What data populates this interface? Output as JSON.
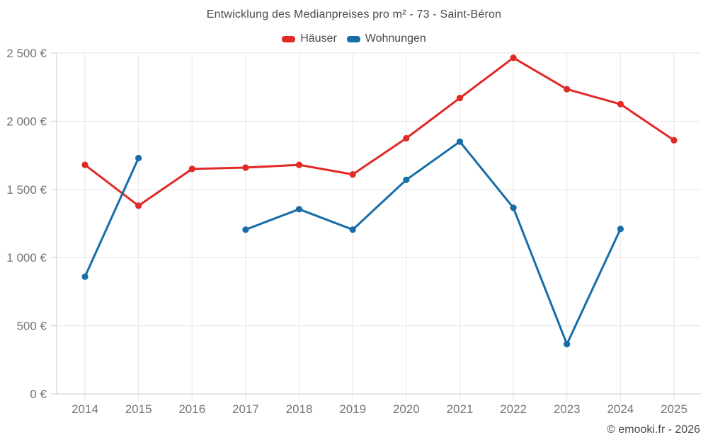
{
  "title": "Entwicklung des Medianpreises pro m² - 73 - Saint-Béron",
  "footer": "© emooki.fr - 2026",
  "colors": {
    "haeuser": "#e12926",
    "wohnungen": "#176da7",
    "grid": "#e6e6e6",
    "axis": "#cccccc",
    "tick_text": "#757575",
    "title_text": "#4a4a4a"
  },
  "chart_data": {
    "type": "line",
    "categories": [
      "2014",
      "2015",
      "2016",
      "2017",
      "2018",
      "2019",
      "2020",
      "2021",
      "2022",
      "2023",
      "2024",
      "2025"
    ],
    "series": [
      {
        "name": "Häuser",
        "color": "#e12926",
        "values": [
          1680,
          1380,
          1650,
          1660,
          1680,
          1610,
          1875,
          2170,
          2465,
          2235,
          2125,
          1860
        ]
      },
      {
        "name": "Wohnungen",
        "color": "#176da7",
        "values": [
          860,
          1730,
          null,
          1205,
          1355,
          1205,
          1570,
          1850,
          1365,
          365,
          1210,
          null
        ]
      }
    ],
    "title": "Entwicklung des Medianpreises pro m² - 73 - Saint-Béron",
    "xlabel": "",
    "ylabel": "",
    "ylim": [
      0,
      2500
    ],
    "yticks": [
      0,
      500,
      1000,
      1500,
      2000,
      2500
    ],
    "ytick_labels": [
      "0 €",
      "500 €",
      "1 000 €",
      "1 500 €",
      "2 000 €",
      "2 500 €"
    ],
    "grid": true,
    "legend_position": "top",
    "marker": "circle"
  }
}
